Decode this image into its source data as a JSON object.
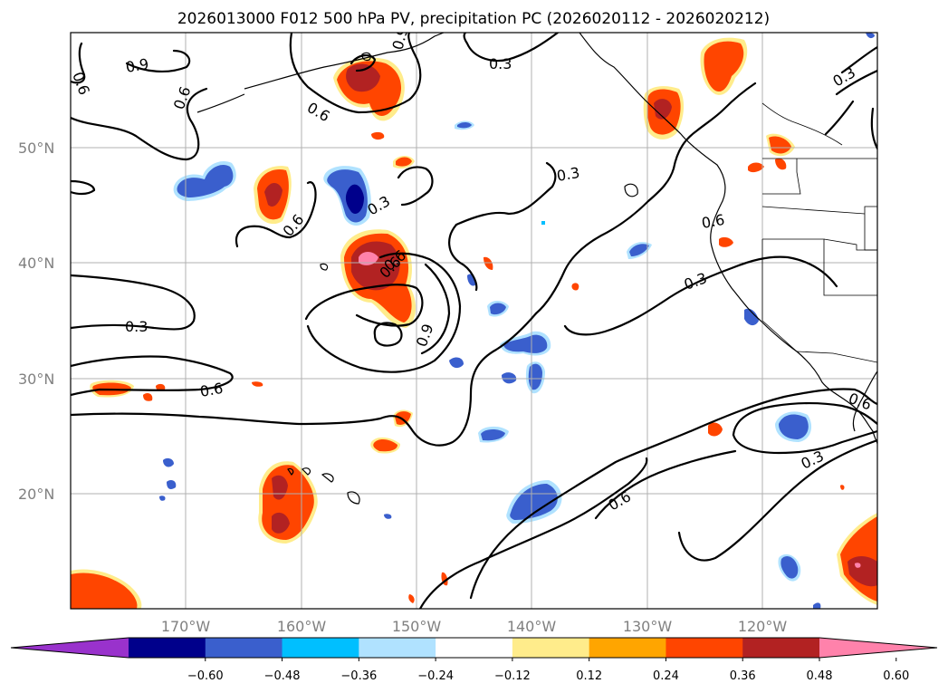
{
  "title": "2026013000 F012 500 hPa PV, precipitation PC (2026020112 - 2026020212)",
  "latitude_labels": [
    "50°N",
    "40°N",
    "30°N",
    "20°N"
  ],
  "longitude_labels": [
    "170°W",
    "160°W",
    "150°W",
    "140°W",
    "130°W",
    "120°W"
  ],
  "colorbar": {
    "ticks": [
      "−0.60",
      "−0.48",
      "−0.36",
      "−0.24",
      "−0.12",
      "0.12",
      "0.24",
      "0.36",
      "0.48",
      "0.60"
    ],
    "colors": [
      "#9932cc",
      "#00008b",
      "#3a5fcd",
      "#00bfff",
      "#b0e2ff",
      "#ffffff",
      "#ffec8b",
      "#ffa500",
      "#ff4500",
      "#b22222",
      "#ff82ab"
    ]
  },
  "contour_labels": [
    "0.9",
    "0.6",
    "0.6",
    "0.9",
    "0.6",
    "0.3",
    "0.3",
    "0.3",
    "0.6",
    "0.6",
    "0.3",
    "0.6",
    "0.3",
    "0.6",
    "0.9",
    "0.3",
    "0.6",
    "0.6",
    "0.3",
    "0.6"
  ]
}
